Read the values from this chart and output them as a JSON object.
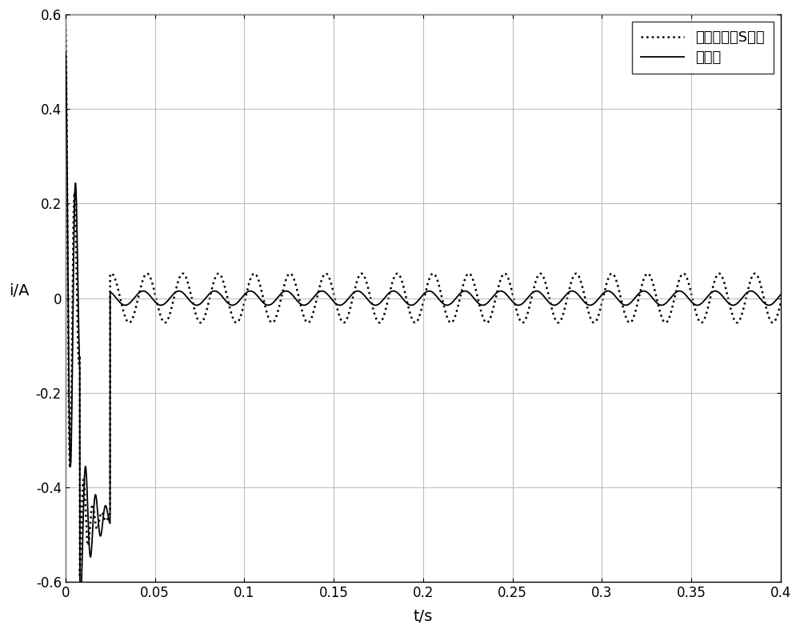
{
  "title": "",
  "xlabel": "t/s",
  "ylabel": "i/A",
  "xlim": [
    0,
    0.4
  ],
  "ylim": [
    -0.6,
    0.6
  ],
  "xticks": [
    0,
    0.05,
    0.1,
    0.15,
    0.2,
    0.25,
    0.3,
    0.35,
    0.4
  ],
  "yticks": [
    -0.6,
    -0.4,
    -0.2,
    0,
    0.2,
    0.4,
    0.6
  ],
  "legend_labels": [
    "基于改进的S函数",
    "本发明"
  ],
  "line1_color": "#000000",
  "line2_color": "#000000",
  "background_color": "#ffffff",
  "grid_color": "#b0b0b0",
  "figsize": [
    10.0,
    7.91
  ],
  "dpi": 100,
  "dotted_steady_amp": 0.052,
  "solid_steady_amp": 0.015,
  "steady_freq": 50,
  "dotted_lw": 1.8,
  "solid_lw": 1.3
}
